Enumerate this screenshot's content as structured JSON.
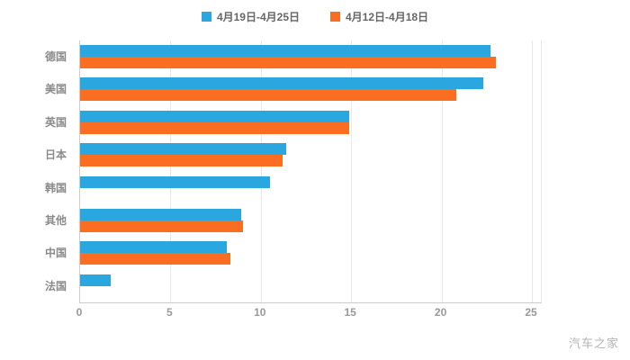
{
  "legend": {
    "items": [
      {
        "label": "4月19日-4月25日",
        "color": "#2BA7DF"
      },
      {
        "label": "4月12日-4月18日",
        "color": "#FB6D20"
      }
    ]
  },
  "chart_data": {
    "type": "bar",
    "orientation": "horizontal",
    "title": "",
    "xlabel": "",
    "ylabel": "",
    "categories": [
      "德国",
      "美国",
      "英国",
      "日本",
      "韩国",
      "其他",
      "中国",
      "法国"
    ],
    "series": [
      {
        "name": "4月19日-4月25日",
        "color": "#2BA7DF",
        "values": [
          22.7,
          22.3,
          14.9,
          11.4,
          10.5,
          8.9,
          8.1,
          1.7
        ]
      },
      {
        "name": "4月12日-4月18日",
        "color": "#FB6D20",
        "values": [
          23.0,
          20.8,
          14.9,
          11.2,
          null,
          9.0,
          8.3,
          null
        ]
      }
    ],
    "xlim": [
      0,
      25
    ],
    "xticks": [
      0,
      5,
      10,
      15,
      20,
      25
    ],
    "grid": true,
    "legend_position": "top"
  },
  "watermark": "汽车之家",
  "colors": {
    "blue": "#2BA7DF",
    "orange": "#FB6D20",
    "grid": "#e8e8e8",
    "axis_line": "#cccccc",
    "tick_label": "#999999",
    "category_label": "#8a8a8a"
  }
}
